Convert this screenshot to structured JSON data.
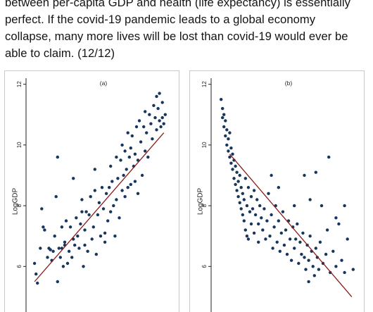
{
  "post": {
    "lines": [
      "between per-capita GDP and health (life expectancy) is essentially",
      "perfect. If the covid-19 pandemic leads to a global economy",
      "collapse, many more lives will be lost than covid-19 would ever be",
      "able to claim. (12/12)"
    ]
  },
  "chart_data": [
    {
      "type": "scatter",
      "title": "(a)",
      "ylabel": "LogGDP",
      "xlabel": "",
      "ylim": [
        4.5,
        12.2
      ],
      "xlim": [
        0,
        100
      ],
      "y_ticks": [
        "6",
        "8",
        "10",
        "12"
      ],
      "grid": false,
      "fit_line": {
        "x": [
          3,
          93
        ],
        "y": [
          5.5,
          10.4
        ],
        "color": "#8b1a1a"
      },
      "point_color": "#17365d",
      "points": [
        [
          3,
          6.1
        ],
        [
          4,
          5.75
        ],
        [
          5,
          5.45
        ],
        [
          7,
          6.6
        ],
        [
          8,
          7.9
        ],
        [
          9,
          7.3
        ],
        [
          10,
          7.2
        ],
        [
          12,
          6.3
        ],
        [
          13,
          6.6
        ],
        [
          14,
          6.55
        ],
        [
          15,
          6.2
        ],
        [
          16,
          6.5
        ],
        [
          17,
          7.0
        ],
        [
          18,
          8.3
        ],
        [
          19,
          5.5
        ],
        [
          19,
          9.6
        ],
        [
          20,
          6.6
        ],
        [
          21,
          6.3
        ],
        [
          22,
          6.6
        ],
        [
          22,
          7.3
        ],
        [
          23,
          6.0
        ],
        [
          24,
          6.7
        ],
        [
          24,
          6.8
        ],
        [
          25,
          7.5
        ],
        [
          26,
          6.1
        ],
        [
          27,
          6.5
        ],
        [
          28,
          7.3
        ],
        [
          29,
          6.3
        ],
        [
          30,
          6.9
        ],
        [
          30,
          8.9
        ],
        [
          31,
          6.7
        ],
        [
          32,
          7.6
        ],
        [
          33,
          7.0
        ],
        [
          34,
          6.6
        ],
        [
          35,
          7.4
        ],
        [
          36,
          7.8
        ],
        [
          36,
          8.2
        ],
        [
          37,
          6.0
        ],
        [
          38,
          6.7
        ],
        [
          38,
          7.2
        ],
        [
          39,
          7.8
        ],
        [
          40,
          6.5
        ],
        [
          41,
          7.7
        ],
        [
          42,
          8.3
        ],
        [
          43,
          6.9
        ],
        [
          44,
          7.3
        ],
        [
          45,
          8.5
        ],
        [
          45,
          9.2
        ],
        [
          46,
          6.4
        ],
        [
          47,
          7.7
        ],
        [
          48,
          8.1
        ],
        [
          49,
          7.0
        ],
        [
          50,
          8.6
        ],
        [
          51,
          7.9
        ],
        [
          52,
          7.1
        ],
        [
          52,
          6.8
        ],
        [
          53,
          8.4
        ],
        [
          54,
          7.5
        ],
        [
          55,
          8.6
        ],
        [
          56,
          7.8
        ],
        [
          56,
          9.3
        ],
        [
          57,
          8.8
        ],
        [
          58,
          8.0
        ],
        [
          59,
          7.0
        ],
        [
          60,
          8.2
        ],
        [
          60,
          9.6
        ],
        [
          61,
          8.9
        ],
        [
          62,
          7.6
        ],
        [
          63,
          9.5
        ],
        [
          64,
          8.5
        ],
        [
          64,
          10.0
        ],
        [
          65,
          9.0
        ],
        [
          66,
          8.3
        ],
        [
          66,
          9.8
        ],
        [
          67,
          9.2
        ],
        [
          68,
          8.6
        ],
        [
          68,
          10.4
        ],
        [
          69,
          9.6
        ],
        [
          70,
          8.7
        ],
        [
          70,
          9.9
        ],
        [
          71,
          10.3
        ],
        [
          72,
          9.3
        ],
        [
          73,
          8.8
        ],
        [
          73,
          9.7
        ],
        [
          74,
          10.6
        ],
        [
          75,
          9.5
        ],
        [
          75,
          8.4
        ],
        [
          76,
          10.8
        ],
        [
          77,
          10.1
        ],
        [
          78,
          9.0
        ],
        [
          79,
          10.6
        ],
        [
          80,
          11.1
        ],
        [
          80,
          9.8
        ],
        [
          81,
          10.4
        ],
        [
          82,
          9.6
        ],
        [
          83,
          11.0
        ],
        [
          84,
          10.7
        ],
        [
          85,
          10.2
        ],
        [
          86,
          11.3
        ],
        [
          87,
          10.9
        ],
        [
          88,
          11.6
        ],
        [
          88,
          10.5
        ],
        [
          89,
          11.2
        ],
        [
          90,
          10.8
        ],
        [
          91,
          10.6
        ],
        [
          92,
          11.4
        ],
        [
          92,
          10.9
        ],
        [
          93,
          10.7
        ],
        [
          94,
          11.0
        ],
        [
          90,
          11.7
        ]
      ]
    },
    {
      "type": "scatter",
      "title": "(b)",
      "ylabel": "LogGDP",
      "xlabel": "",
      "ylim": [
        4.5,
        12.2
      ],
      "xlim": [
        0,
        100
      ],
      "y_ticks": [
        "6",
        "8",
        "10",
        "12"
      ],
      "grid": false,
      "fit_line": {
        "x": [
          10,
          95
        ],
        "y": [
          9.7,
          5.0
        ],
        "color": "#8b1a1a"
      },
      "point_color": "#17365d",
      "points": [
        [
          4,
          11.5
        ],
        [
          5,
          11.2
        ],
        [
          5,
          10.9
        ],
        [
          6,
          11.0
        ],
        [
          6,
          10.6
        ],
        [
          7,
          10.8
        ],
        [
          7,
          10.3
        ],
        [
          8,
          10.5
        ],
        [
          8,
          10.0
        ],
        [
          9,
          10.2
        ],
        [
          9,
          9.8
        ],
        [
          10,
          10.4
        ],
        [
          10,
          9.6
        ],
        [
          11,
          9.9
        ],
        [
          11,
          9.4
        ],
        [
          12,
          9.7
        ],
        [
          12,
          9.2
        ],
        [
          13,
          9.5
        ],
        [
          13,
          8.9
        ],
        [
          14,
          9.3
        ],
        [
          14,
          8.7
        ],
        [
          15,
          9.1
        ],
        [
          15,
          8.5
        ],
        [
          16,
          8.8
        ],
        [
          16,
          8.3
        ],
        [
          17,
          9.0
        ],
        [
          17,
          8.1
        ],
        [
          18,
          8.6
        ],
        [
          18,
          7.9
        ],
        [
          19,
          8.4
        ],
        [
          19,
          7.7
        ],
        [
          20,
          8.2
        ],
        [
          20,
          7.5
        ],
        [
          21,
          8.9
        ],
        [
          21,
          7.2
        ],
        [
          22,
          8.0
        ],
        [
          22,
          7.0
        ],
        [
          23,
          8.6
        ],
        [
          23,
          6.9
        ],
        [
          24,
          7.8
        ],
        [
          25,
          8.3
        ],
        [
          25,
          7.4
        ],
        [
          26,
          7.9
        ],
        [
          27,
          8.5
        ],
        [
          27,
          7.1
        ],
        [
          28,
          7.7
        ],
        [
          29,
          8.2
        ],
        [
          30,
          7.4
        ],
        [
          30,
          6.8
        ],
        [
          31,
          8.0
        ],
        [
          32,
          7.6
        ],
        [
          33,
          7.2
        ],
        [
          34,
          7.9
        ],
        [
          35,
          6.9
        ],
        [
          36,
          7.5
        ],
        [
          37,
          8.4
        ],
        [
          38,
          7.0
        ],
        [
          39,
          7.7
        ],
        [
          40,
          6.6
        ],
        [
          41,
          7.3
        ],
        [
          42,
          8.0
        ],
        [
          43,
          6.8
        ],
        [
          44,
          7.5
        ],
        [
          45,
          6.5
        ],
        [
          46,
          7.1
        ],
        [
          47,
          7.8
        ],
        [
          48,
          6.7
        ],
        [
          49,
          7.2
        ],
        [
          50,
          6.4
        ],
        [
          51,
          7.5
        ],
        [
          52,
          6.9
        ],
        [
          53,
          6.2
        ],
        [
          54,
          7.3
        ],
        [
          55,
          6.6
        ],
        [
          56,
          6.9
        ],
        [
          57,
          7.4
        ],
        [
          58,
          6.1
        ],
        [
          59,
          6.8
        ],
        [
          60,
          6.4
        ],
        [
          61,
          7.1
        ],
        [
          62,
          6.3
        ],
        [
          63,
          5.9
        ],
        [
          64,
          6.7
        ],
        [
          65,
          6.2
        ],
        [
          66,
          7.0
        ],
        [
          67,
          6.5
        ],
        [
          68,
          6.0
        ],
        [
          69,
          5.7
        ],
        [
          70,
          6.6
        ],
        [
          71,
          6.3
        ],
        [
          72,
          5.9
        ],
        [
          73,
          6.8
        ],
        [
          75,
          6.1
        ],
        [
          77,
          6.4
        ],
        [
          78,
          7.2
        ],
        [
          80,
          5.8
        ],
        [
          82,
          6.5
        ],
        [
          84,
          6.0
        ],
        [
          86,
          7.4
        ],
        [
          88,
          6.2
        ],
        [
          90,
          5.8
        ],
        [
          92,
          6.9
        ],
        [
          62,
          9.0
        ],
        [
          66,
          8.2
        ],
        [
          70,
          9.1
        ],
        [
          74,
          8.0
        ],
        [
          84,
          7.6
        ],
        [
          90,
          8.0
        ],
        [
          96,
          5.9
        ],
        [
          65,
          5.5
        ],
        [
          39,
          9.0
        ],
        [
          44,
          8.6
        ],
        [
          79,
          9.6
        ],
        [
          55,
          8.0
        ]
      ]
    }
  ]
}
